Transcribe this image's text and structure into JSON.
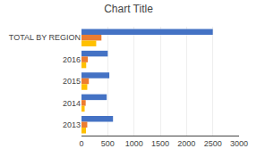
{
  "chart_data": {
    "type": "bar",
    "orientation": "horizontal",
    "title": "Chart Title",
    "categories": [
      "TOTAL BY REGION",
      "2016",
      "2015",
      "2014",
      "2013"
    ],
    "series": [
      {
        "values": [
          2500,
          500,
          530,
          480,
          600
        ],
        "color": "#4472C4"
      },
      {
        "values": [
          380,
          120,
          140,
          80,
          110
        ],
        "color": "#ED7D31"
      },
      {
        "values": [
          280,
          90,
          110,
          60,
          85
        ],
        "color": "#FFC000"
      }
    ],
    "xlim": [
      0,
      3000
    ],
    "xticks": [
      0,
      500,
      1000,
      1500,
      2000,
      2500,
      3000
    ],
    "grid": true
  }
}
